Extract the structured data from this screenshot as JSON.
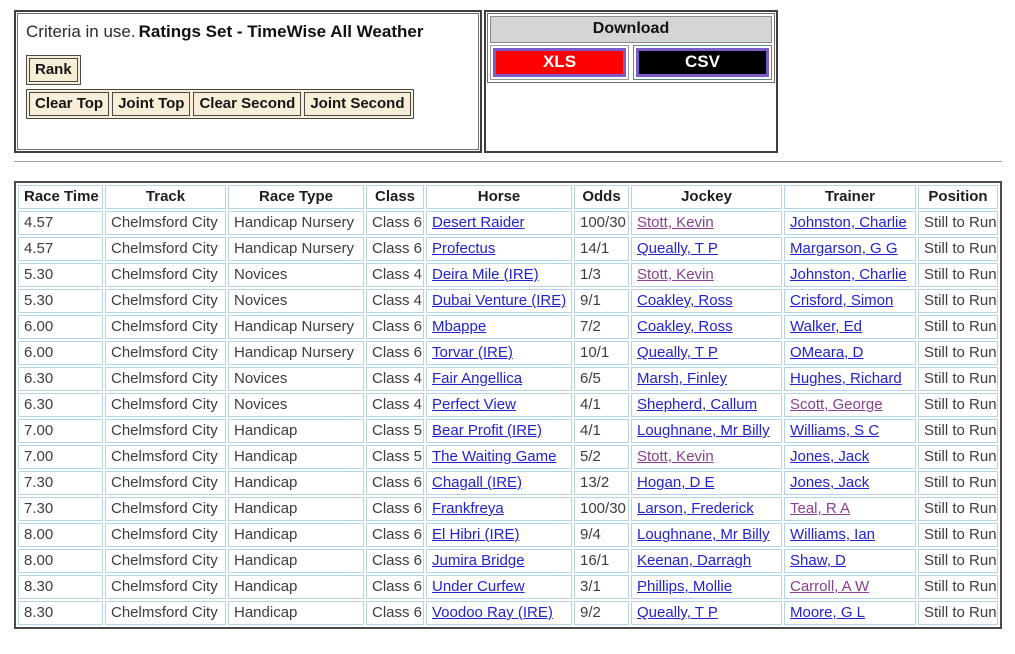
{
  "criteria": {
    "prefix": "Criteria in use.",
    "ratings_set": "Ratings Set - TimeWise All Weather",
    "rank_label": "Rank",
    "buttons": [
      "Clear Top",
      "Joint Top",
      "Clear Second",
      "Joint Second"
    ]
  },
  "download": {
    "title": "Download",
    "xls_label": "XLS",
    "csv_label": "CSV",
    "xls_color": "#ff0000",
    "csv_color": "#000000"
  },
  "table": {
    "headers": [
      "Race Time",
      "Track",
      "Race Type",
      "Class",
      "Horse",
      "Odds",
      "Jockey",
      "Trainer",
      "Position"
    ],
    "rows": [
      {
        "time": "4.57",
        "track": "Chelmsford City",
        "race_type": "Handicap Nursery",
        "race_class": "Class 6",
        "horse": "Desert Raider",
        "odds": "100/30",
        "jockey": "Stott, Kevin",
        "jockey_visited": true,
        "trainer": "Johnston, Charlie",
        "trainer_visited": false,
        "position": "Still to Run"
      },
      {
        "time": "4.57",
        "track": "Chelmsford City",
        "race_type": "Handicap Nursery",
        "race_class": "Class 6",
        "horse": "Profectus",
        "odds": "14/1",
        "jockey": "Queally, T P",
        "jockey_visited": false,
        "trainer": "Margarson, G G",
        "trainer_visited": false,
        "position": "Still to Run"
      },
      {
        "time": "5.30",
        "track": "Chelmsford City",
        "race_type": "Novices",
        "race_class": "Class 4",
        "horse": "Deira Mile (IRE)",
        "odds": "1/3",
        "jockey": "Stott, Kevin",
        "jockey_visited": true,
        "trainer": "Johnston, Charlie",
        "trainer_visited": false,
        "position": "Still to Run"
      },
      {
        "time": "5.30",
        "track": "Chelmsford City",
        "race_type": "Novices",
        "race_class": "Class 4",
        "horse": "Dubai Venture (IRE)",
        "odds": "9/1",
        "jockey": "Coakley, Ross",
        "jockey_visited": false,
        "trainer": "Crisford, Simon",
        "trainer_visited": false,
        "position": "Still to Run"
      },
      {
        "time": "6.00",
        "track": "Chelmsford City",
        "race_type": "Handicap Nursery",
        "race_class": "Class 6",
        "horse": "Mbappe",
        "odds": "7/2",
        "jockey": "Coakley, Ross",
        "jockey_visited": false,
        "trainer": "Walker, Ed",
        "trainer_visited": false,
        "position": "Still to Run"
      },
      {
        "time": "6.00",
        "track": "Chelmsford City",
        "race_type": "Handicap Nursery",
        "race_class": "Class 6",
        "horse": "Torvar (IRE)",
        "odds": "10/1",
        "jockey": "Queally, T P",
        "jockey_visited": false,
        "trainer": "OMeara, D",
        "trainer_visited": false,
        "position": "Still to Run"
      },
      {
        "time": "6.30",
        "track": "Chelmsford City",
        "race_type": "Novices",
        "race_class": "Class 4",
        "horse": "Fair Angellica",
        "odds": "6/5",
        "jockey": "Marsh, Finley",
        "jockey_visited": false,
        "trainer": "Hughes, Richard",
        "trainer_visited": false,
        "position": "Still to Run"
      },
      {
        "time": "6.30",
        "track": "Chelmsford City",
        "race_type": "Novices",
        "race_class": "Class 4",
        "horse": "Perfect View",
        "odds": "4/1",
        "jockey": "Shepherd, Callum",
        "jockey_visited": false,
        "trainer": "Scott, George",
        "trainer_visited": true,
        "position": "Still to Run"
      },
      {
        "time": "7.00",
        "track": "Chelmsford City",
        "race_type": "Handicap",
        "race_class": "Class 5",
        "horse": "Bear Profit (IRE)",
        "odds": "4/1",
        "jockey": "Loughnane, Mr Billy",
        "jockey_visited": false,
        "trainer": "Williams, S C",
        "trainer_visited": false,
        "position": "Still to Run"
      },
      {
        "time": "7.00",
        "track": "Chelmsford City",
        "race_type": "Handicap",
        "race_class": "Class 5",
        "horse": "The Waiting Game",
        "odds": "5/2",
        "jockey": "Stott, Kevin",
        "jockey_visited": true,
        "trainer": "Jones, Jack",
        "trainer_visited": false,
        "position": "Still to Run"
      },
      {
        "time": "7.30",
        "track": "Chelmsford City",
        "race_type": "Handicap",
        "race_class": "Class 6",
        "horse": "Chagall (IRE)",
        "odds": "13/2",
        "jockey": "Hogan, D E",
        "jockey_visited": false,
        "trainer": "Jones, Jack",
        "trainer_visited": false,
        "position": "Still to Run"
      },
      {
        "time": "7.30",
        "track": "Chelmsford City",
        "race_type": "Handicap",
        "race_class": "Class 6",
        "horse": "Frankfreya",
        "odds": "100/30",
        "jockey": "Larson, Frederick",
        "jockey_visited": false,
        "trainer": "Teal, R A",
        "trainer_visited": true,
        "position": "Still to Run"
      },
      {
        "time": "8.00",
        "track": "Chelmsford City",
        "race_type": "Handicap",
        "race_class": "Class 6",
        "horse": "El Hibri (IRE)",
        "odds": "9/4",
        "jockey": "Loughnane, Mr Billy",
        "jockey_visited": false,
        "trainer": "Williams, Ian",
        "trainer_visited": false,
        "position": "Still to Run"
      },
      {
        "time": "8.00",
        "track": "Chelmsford City",
        "race_type": "Handicap",
        "race_class": "Class 6",
        "horse": "Jumira Bridge",
        "odds": "16/1",
        "jockey": "Keenan, Darragh",
        "jockey_visited": false,
        "trainer": "Shaw, D",
        "trainer_visited": false,
        "position": "Still to Run"
      },
      {
        "time": "8.30",
        "track": "Chelmsford City",
        "race_type": "Handicap",
        "race_class": "Class 6",
        "horse": "Under Curfew",
        "odds": "3/1",
        "jockey": "Phillips, Mollie",
        "jockey_visited": false,
        "trainer": "Carroll, A W",
        "trainer_visited": true,
        "position": "Still to Run"
      },
      {
        "time": "8.30",
        "track": "Chelmsford City",
        "race_type": "Handicap",
        "race_class": "Class 6",
        "horse": "Voodoo Ray (IRE)",
        "odds": "9/2",
        "jockey": "Queally, T P",
        "jockey_visited": false,
        "trainer": "Moore, G L",
        "trainer_visited": false,
        "position": "Still to Run"
      }
    ]
  }
}
